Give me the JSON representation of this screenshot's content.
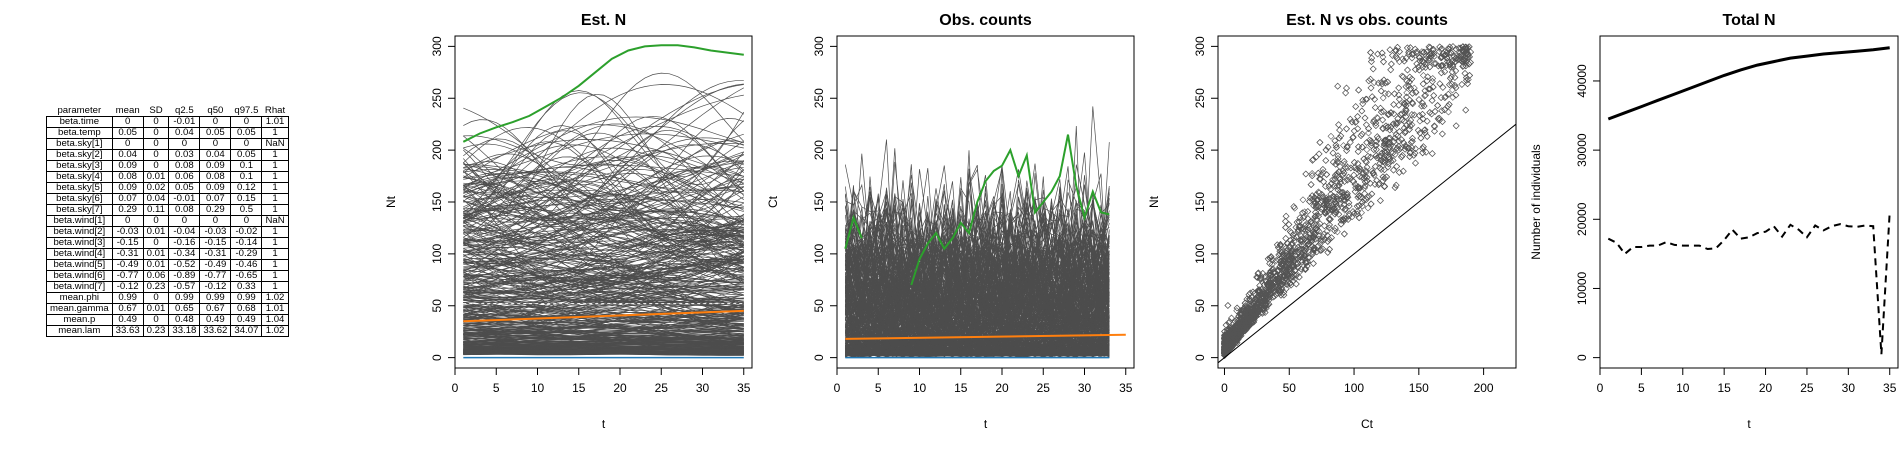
{
  "table": {
    "headers": [
      "parameter",
      "mean",
      "SD",
      "q2.5",
      "q50",
      "q97.5",
      "Rhat"
    ],
    "rows": [
      [
        "beta.time",
        "0",
        "0",
        "-0.01",
        "0",
        "0",
        "1.01"
      ],
      [
        "beta.temp",
        "0.05",
        "0",
        "0.04",
        "0.05",
        "0.05",
        "1"
      ],
      [
        "beta.sky[1]",
        "0",
        "0",
        "0",
        "0",
        "0",
        "NaN"
      ],
      [
        "beta.sky[2]",
        "0.04",
        "0",
        "0.03",
        "0.04",
        "0.05",
        "1"
      ],
      [
        "beta.sky[3]",
        "0.09",
        "0",
        "0.08",
        "0.09",
        "0.1",
        "1"
      ],
      [
        "beta.sky[4]",
        "0.08",
        "0.01",
        "0.06",
        "0.08",
        "0.1",
        "1"
      ],
      [
        "beta.sky[5]",
        "0.09",
        "0.02",
        "0.05",
        "0.09",
        "0.12",
        "1"
      ],
      [
        "beta.sky[6]",
        "0.07",
        "0.04",
        "-0.01",
        "0.07",
        "0.15",
        "1"
      ],
      [
        "beta.sky[7]",
        "0.29",
        "0.11",
        "0.08",
        "0.29",
        "0.5",
        "1"
      ],
      [
        "beta.wind[1]",
        "0",
        "0",
        "0",
        "0",
        "0",
        "NaN"
      ],
      [
        "beta.wind[2]",
        "-0.03",
        "0.01",
        "-0.04",
        "-0.03",
        "-0.02",
        "1"
      ],
      [
        "beta.wind[3]",
        "-0.15",
        "0",
        "-0.16",
        "-0.15",
        "-0.14",
        "1"
      ],
      [
        "beta.wind[4]",
        "-0.31",
        "0.01",
        "-0.34",
        "-0.31",
        "-0.29",
        "1"
      ],
      [
        "beta.wind[5]",
        "-0.49",
        "0.01",
        "-0.52",
        "-0.49",
        "-0.46",
        "1"
      ],
      [
        "beta.wind[6]",
        "-0.77",
        "0.06",
        "-0.89",
        "-0.77",
        "-0.65",
        "1"
      ],
      [
        "beta.wind[7]",
        "-0.12",
        "0.23",
        "-0.57",
        "-0.12",
        "0.33",
        "1"
      ],
      [
        "mean.phi",
        "0.99",
        "0",
        "0.99",
        "0.99",
        "0.99",
        "1.02"
      ],
      [
        "mean.gamma",
        "0.67",
        "0.01",
        "0.65",
        "0.67",
        "0.68",
        "1.01"
      ],
      [
        "mean.p",
        "0.49",
        "0",
        "0.48",
        "0.49",
        "0.49",
        "1.04"
      ],
      [
        "mean.lam",
        "33.63",
        "0.23",
        "33.18",
        "33.62",
        "34.07",
        "1.02"
      ]
    ]
  },
  "colors": {
    "grey_lines": "#4d4d4d",
    "highlight": "#2ca02c",
    "mean": "#ff7f0e",
    "floor": "#1f77b4"
  },
  "chart_data": [
    {
      "type": "line",
      "title": "Est. N",
      "xlabel": "t",
      "ylabel": "Nt",
      "xlim": [
        0,
        36
      ],
      "ylim": [
        -10,
        310
      ],
      "xticks": [
        0,
        5,
        10,
        15,
        20,
        25,
        30,
        35
      ],
      "yticks": [
        0,
        50,
        100,
        150,
        200,
        250,
        300
      ],
      "background_series_count": 450,
      "highlight_series": {
        "x": [
          1,
          3,
          5,
          7,
          9,
          11,
          13,
          15,
          17,
          19,
          21,
          23,
          25,
          27,
          29,
          31,
          33,
          35
        ],
        "values": [
          208,
          216,
          222,
          227,
          233,
          242,
          251,
          262,
          275,
          288,
          296,
          300,
          301,
          301,
          299,
          296,
          294,
          292
        ]
      },
      "mean_series": {
        "x": [
          1,
          35
        ],
        "values": [
          35,
          45
        ]
      },
      "dashed_reference": 52,
      "floor_series": {
        "x": [
          1,
          35
        ],
        "values": [
          0,
          0
        ]
      }
    },
    {
      "type": "line",
      "title": "Obs. counts",
      "xlabel": "t",
      "ylabel": "Ct",
      "xlim": [
        0,
        36
      ],
      "ylim": [
        -10,
        310
      ],
      "xticks": [
        0,
        5,
        10,
        15,
        20,
        25,
        30,
        35
      ],
      "yticks": [
        0,
        50,
        100,
        150,
        200,
        250,
        300
      ],
      "background_series_count": 450,
      "highlight_series": {
        "x": [
          1,
          2,
          3,
          9,
          10,
          11,
          12,
          13,
          14,
          15,
          16,
          17,
          18,
          19,
          20,
          21,
          22,
          23,
          24,
          25,
          26,
          27,
          28,
          29,
          30,
          31,
          32,
          33
        ],
        "values": [
          105,
          135,
          115,
          70,
          95,
          110,
          120,
          105,
          115,
          130,
          120,
          150,
          170,
          180,
          185,
          200,
          175,
          195,
          140,
          150,
          160,
          175,
          215,
          165,
          135,
          160,
          140,
          138
        ]
      },
      "mean_series": {
        "x": [
          1,
          35
        ],
        "values": [
          18,
          22
        ]
      },
      "floor_series": {
        "x": [
          1,
          33
        ],
        "values": [
          0,
          0
        ]
      }
    },
    {
      "type": "scatter",
      "title": "Est. N vs obs. counts",
      "xlabel": "Ct",
      "ylabel": "Nt",
      "xlim": [
        -5,
        225
      ],
      "ylim": [
        -10,
        310
      ],
      "xticks": [
        0,
        50,
        100,
        150,
        200
      ],
      "yticks": [
        0,
        50,
        100,
        150,
        200,
        250,
        300
      ],
      "point_count": 4000,
      "reference_line": "y = x"
    },
    {
      "type": "line",
      "title": "Total N",
      "xlabel": "t",
      "ylabel": "Number of individuals",
      "xlim": [
        0,
        36
      ],
      "ylim": [
        -1500,
        46500
      ],
      "xticks": [
        0,
        5,
        10,
        15,
        20,
        25,
        30,
        35
      ],
      "yticks": [
        0,
        10000,
        20000,
        30000,
        40000
      ],
      "series": [
        {
          "style": "solid",
          "x": [
            1,
            3,
            5,
            7,
            9,
            11,
            13,
            15,
            17,
            19,
            21,
            23,
            25,
            27,
            29,
            31,
            33,
            35
          ],
          "values": [
            34500,
            35400,
            36300,
            37200,
            38100,
            39000,
            39900,
            40800,
            41600,
            42300,
            42800,
            43300,
            43600,
            43900,
            44100,
            44300,
            44500,
            44800
          ]
        },
        {
          "style": "dashed",
          "x": [
            1,
            2,
            3,
            4,
            5,
            6,
            7,
            8,
            9,
            10,
            11,
            12,
            13,
            14,
            15,
            16,
            17,
            18,
            19,
            20,
            21,
            22,
            23,
            24,
            25,
            26,
            27,
            28,
            29,
            30,
            31,
            32,
            33,
            34,
            35
          ],
          "values": [
            17200,
            16600,
            15000,
            16000,
            16000,
            16200,
            16200,
            16700,
            16300,
            16200,
            16200,
            16200,
            15700,
            15800,
            17000,
            18500,
            17200,
            17400,
            18000,
            18200,
            19000,
            17500,
            19200,
            18500,
            17400,
            19100,
            18400,
            19000,
            19300,
            19000,
            18900,
            19100,
            19000,
            500,
            21000
          ]
        }
      ]
    }
  ]
}
